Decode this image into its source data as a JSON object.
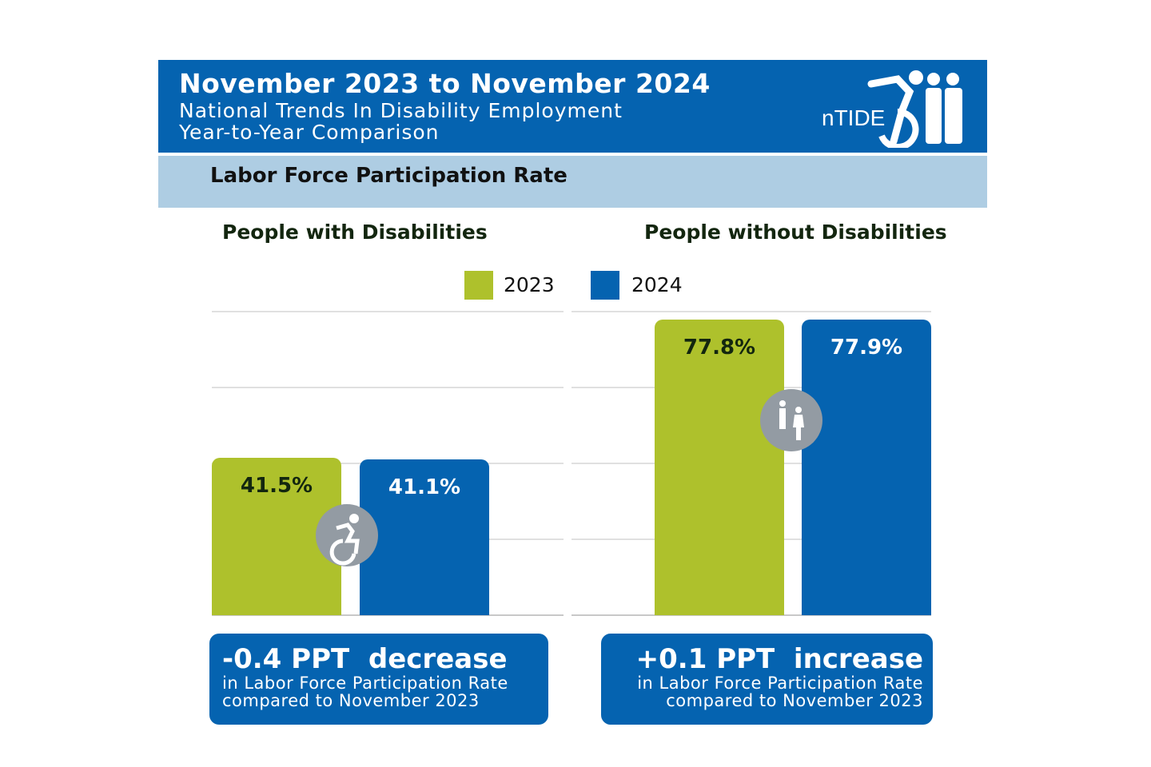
{
  "header": {
    "title": "November 2023 to November 2024",
    "subtitle_line1": "National Trends In Disability Employment",
    "subtitle_line2": "Year-to-Year Comparison",
    "logo_text": "nTIDE"
  },
  "section_title": "Labor Force Participation Rate",
  "colors": {
    "2023": "#aec12c",
    "2024": "#0563b0",
    "header": "#0563b0",
    "band": "#aecde3",
    "icon_circle": "#939ba3"
  },
  "chart_data": [
    {
      "type": "bar",
      "title": "People with Disabilities",
      "categories": [
        "2023",
        "2024"
      ],
      "values": [
        41.5,
        41.1
      ],
      "labels": [
        "41.5%",
        "41.1%"
      ],
      "ylim": [
        0,
        80
      ],
      "grid": true,
      "icon": "wheelchair-icon"
    },
    {
      "type": "bar",
      "title": "People without Disabilities",
      "categories": [
        "2023",
        "2024"
      ],
      "values": [
        77.8,
        77.9
      ],
      "labels": [
        "77.8%",
        "77.9%"
      ],
      "ylim": [
        0,
        80
      ],
      "grid": true,
      "icon": "people-icon"
    }
  ],
  "legend": [
    {
      "label": "2023",
      "color": "#aec12c"
    },
    {
      "label": "2024",
      "color": "#0563b0"
    }
  ],
  "summaries": [
    {
      "headline": "-0.4 PPT  decrease",
      "line1": "in Labor Force Participation Rate",
      "line2": "compared to November 2023"
    },
    {
      "headline": "+0.1 PPT  increase",
      "line1": "in Labor Force Participation Rate",
      "line2": "compared to November 2023"
    }
  ]
}
